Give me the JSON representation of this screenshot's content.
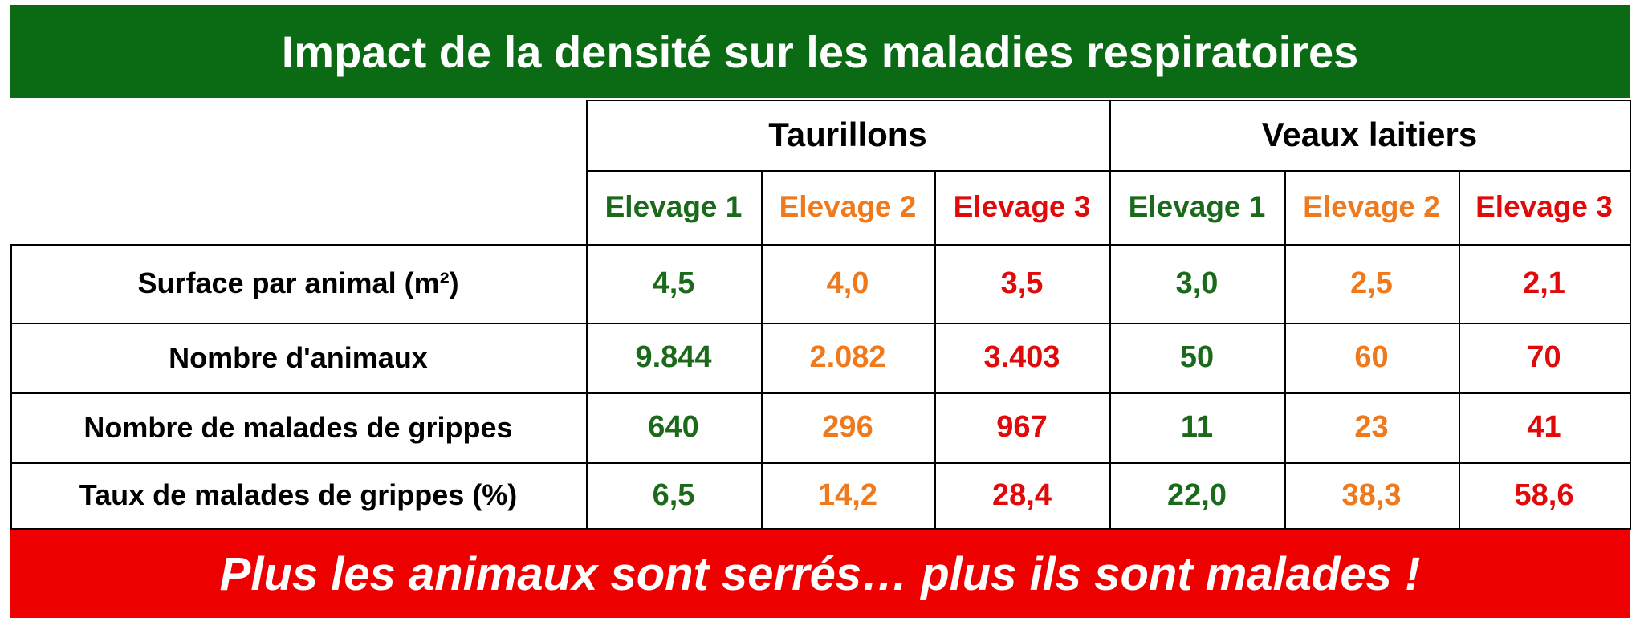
{
  "header": {
    "title": "Impact de la densité sur les maladies respiratoires"
  },
  "table": {
    "groups": [
      "Taurillons",
      "Veaux laitiers"
    ],
    "columns": [
      "Elevage 1",
      "Elevage 2",
      "Elevage 3",
      "Elevage 1",
      "Elevage 2",
      "Elevage 3"
    ],
    "rows": [
      {
        "label": "Surface par animal (m²)",
        "cells": [
          "4,5",
          "4,0",
          "3,5",
          "3,0",
          "2,5",
          "2,1"
        ]
      },
      {
        "label": "Nombre d'animaux",
        "cells": [
          "9.844",
          "2.082",
          "3.403",
          "50",
          "60",
          "70"
        ]
      },
      {
        "label": "Nombre de malades de grippes",
        "cells": [
          "640",
          "296",
          "967",
          "11",
          "23",
          "41"
        ]
      },
      {
        "label": "Taux de malades de grippes (%)",
        "cells": [
          "6,5",
          "14,2",
          "28,4",
          "22,0",
          "38,3",
          "58,6"
        ]
      }
    ]
  },
  "footer": {
    "text": "Plus les animaux sont serrés… plus ils sont malades !"
  }
}
